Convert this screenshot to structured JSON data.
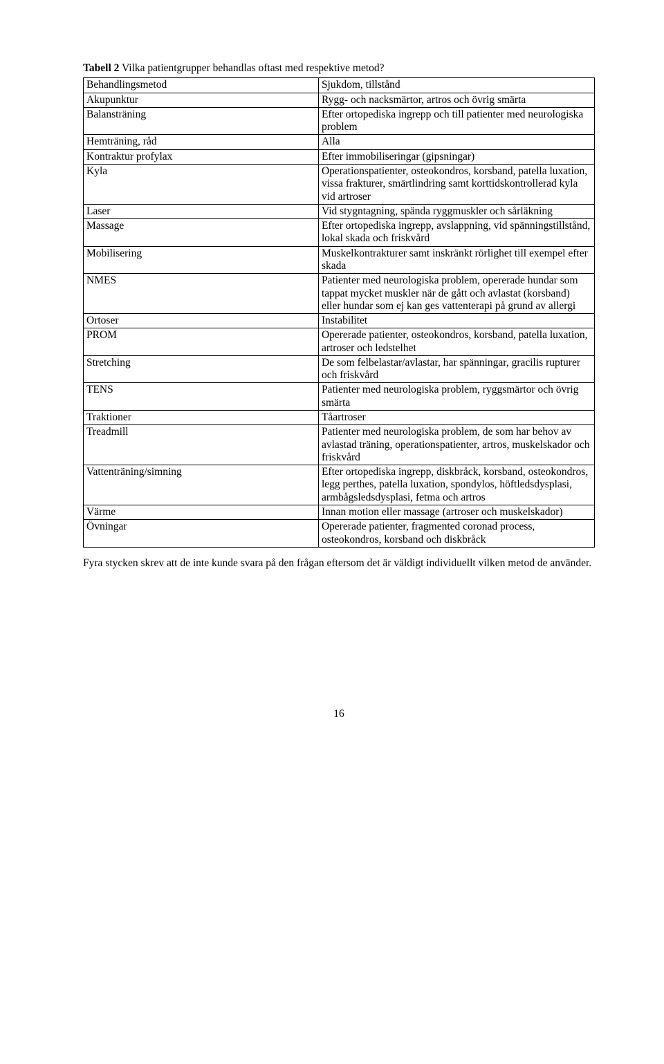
{
  "caption": {
    "label": "Tabell 2",
    "text": " Vilka patientgrupper behandlas oftast med respektive metod?"
  },
  "table": {
    "columns": [
      "Behandlingsmetod",
      "Sjukdom, tillstånd"
    ],
    "rows": [
      [
        "Behandlingsmetod",
        "Sjukdom, tillstånd"
      ],
      [
        "Akupunktur",
        "Rygg- och nacksmärtor, artros och övrig smärta"
      ],
      [
        "Balansträning",
        "Efter ortopediska ingrepp och till patienter med neurologiska problem"
      ],
      [
        "Hemträning, råd",
        "Alla"
      ],
      [
        "Kontraktur profylax",
        "Efter immobiliseringar (gipsningar)"
      ],
      [
        "Kyla",
        "Operationspatienter, osteokondros, korsband, patella luxation, vissa frakturer, smärtlindring samt korttidskontrollerad kyla vid artroser"
      ],
      [
        "Laser",
        "Vid stygntagning, spända ryggmuskler och sårläkning"
      ],
      [
        "Massage",
        "Efter ortopediska ingrepp, avslappning, vid spänningstillstånd, lokal skada och friskvård"
      ],
      [
        "Mobilisering",
        "Muskelkontrakturer samt inskränkt rörlighet till exempel efter skada"
      ],
      [
        "NMES",
        "Patienter med neurologiska problem, opererade hundar som tappat mycket muskler när de gått och avlastat (korsband) eller hundar som ej kan ges vattenterapi på grund av allergi"
      ],
      [
        "Ortoser",
        "Instabilitet"
      ],
      [
        "PROM",
        "Opererade patienter, osteokondros, korsband, patella luxation, artroser och ledstelhet"
      ],
      [
        "Stretching",
        "De som felbelastar/avlastar, har spänningar, gracilis rupturer och friskvård"
      ],
      [
        "TENS",
        "Patienter med neurologiska problem, ryggsmärtor och övrig smärta"
      ],
      [
        "Traktioner",
        "Tåartroser"
      ],
      [
        "Treadmill",
        "Patienter med neurologiska problem, de som har behov av avlastad träning, operationspatienter, artros, muskelskador och friskvård"
      ],
      [
        "Vattenträning/simning",
        "Efter ortopediska ingrepp, diskbråck, korsband, osteokondros, legg perthes, patella luxation, spondylos, höftledsdysplasi, armbågsledsdysplasi, fetma och artros"
      ],
      [
        "Värme",
        "Innan motion eller massage (artroser och muskelskador)"
      ],
      [
        "Övningar",
        "Opererade patienter, fragmented coronad process, osteokondros, korsband och diskbråck"
      ]
    ]
  },
  "paragraph": "Fyra stycken skrev att de inte kunde svara på den frågan eftersom det är väldigt individuellt vilken metod de använder.",
  "page_number": "16"
}
